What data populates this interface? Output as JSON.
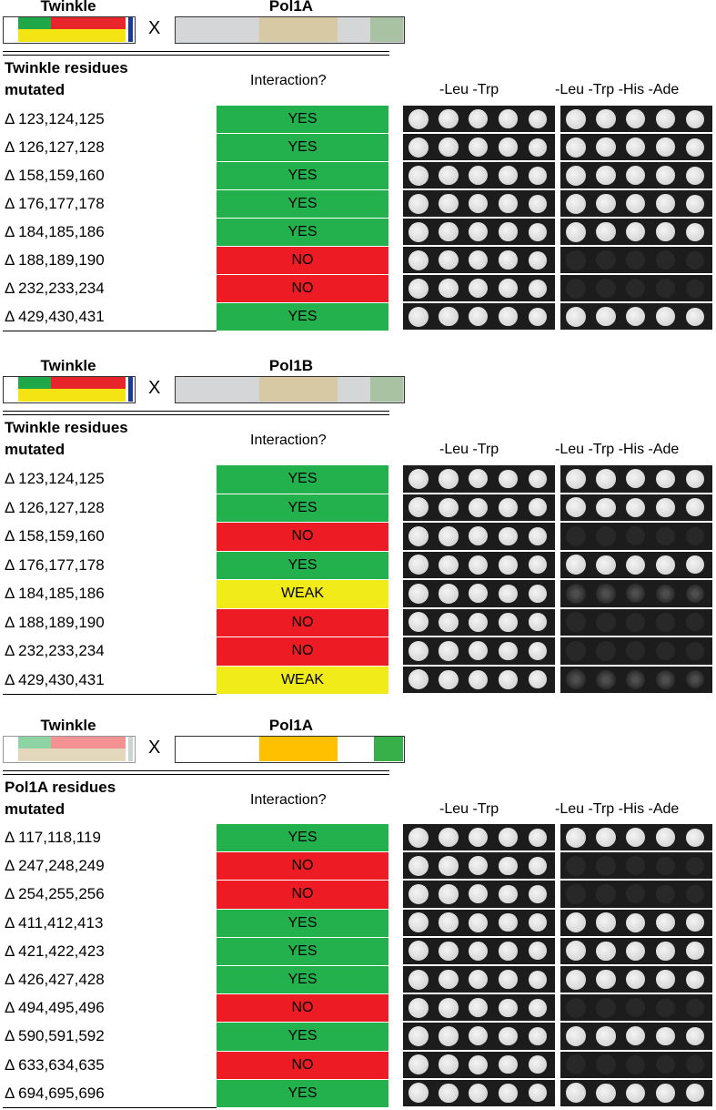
{
  "panels": [
    {
      "bait_label": "Twinkle",
      "cross": "X",
      "prey_label": "Pol1A",
      "residue_header": "Twinkle residues mutated",
      "interaction_header": "Interaction?",
      "plate_headers": [
        "-Leu -Trp",
        "-Leu -Trp -His -Ade"
      ],
      "rows": [
        {
          "mutation": "Δ 123,124,125",
          "interaction": "YES"
        },
        {
          "mutation": "Δ 126,127,128",
          "interaction": "YES"
        },
        {
          "mutation": "Δ 158,159,160",
          "interaction": "YES"
        },
        {
          "mutation": "Δ 176,177,178",
          "interaction": "YES"
        },
        {
          "mutation": "Δ 184,185,186",
          "interaction": "YES"
        },
        {
          "mutation": "Δ 188,189,190",
          "interaction": "NO"
        },
        {
          "mutation": "Δ 232,233,234",
          "interaction": "NO"
        },
        {
          "mutation": "Δ 429,430,431",
          "interaction": "YES"
        }
      ]
    },
    {
      "bait_label": "Twinkle",
      "cross": "X",
      "prey_label": "Pol1B",
      "residue_header": "Twinkle residues mutated",
      "interaction_header": "Interaction?",
      "plate_headers": [
        "-Leu -Trp",
        "-Leu -Trp -His -Ade"
      ],
      "rows": [
        {
          "mutation": "Δ 123,124,125",
          "interaction": "YES"
        },
        {
          "mutation": "Δ 126,127,128",
          "interaction": "YES"
        },
        {
          "mutation": "Δ 158,159,160",
          "interaction": "NO"
        },
        {
          "mutation": "Δ 176,177,178",
          "interaction": "YES"
        },
        {
          "mutation": "Δ 184,185,186",
          "interaction": "WEAK"
        },
        {
          "mutation": "Δ 188,189,190",
          "interaction": "NO"
        },
        {
          "mutation": "Δ 232,233,234",
          "interaction": "NO"
        },
        {
          "mutation": "Δ 429,430,431",
          "interaction": "WEAK"
        }
      ]
    },
    {
      "bait_label": "Twinkle",
      "cross": "X",
      "prey_label": "Pol1A",
      "residue_header": "Pol1A residues mutated",
      "interaction_header": "Interaction?",
      "plate_headers": [
        "-Leu -Trp",
        "-Leu -Trp -His -Ade"
      ],
      "rows": [
        {
          "mutation": "Δ 117,118,119",
          "interaction": "YES"
        },
        {
          "mutation": "Δ 247,248,249",
          "interaction": "NO"
        },
        {
          "mutation": "Δ 254,255,256",
          "interaction": "NO"
        },
        {
          "mutation": "Δ 411,412,413",
          "interaction": "YES"
        },
        {
          "mutation": "Δ 421,422,423",
          "interaction": "YES"
        },
        {
          "mutation": "Δ 426,427,428",
          "interaction": "YES"
        },
        {
          "mutation": "Δ 494,495,496",
          "interaction": "NO"
        },
        {
          "mutation": "Δ 590,591,592",
          "interaction": "YES"
        },
        {
          "mutation": "Δ 633,634,635",
          "interaction": "NO"
        },
        {
          "mutation": "Δ 694,695,696",
          "interaction": "YES"
        }
      ]
    }
  ],
  "interaction_colors": {
    "YES": "#22b14c",
    "NO": "#ed1c24",
    "WEAK": "#f2eb1a"
  }
}
